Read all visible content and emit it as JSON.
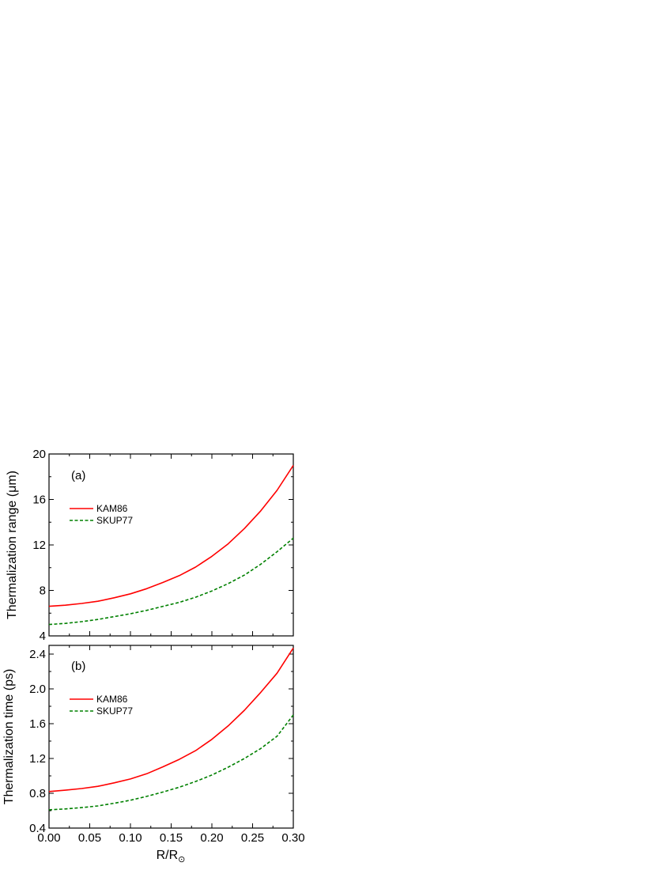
{
  "xlabel": "R/R",
  "xlabel_sub": "⊙",
  "chart_data": [
    {
      "type": "line",
      "panel_label": "(a)",
      "ylabel": "Thermalization range (μm)",
      "xlim": [
        0,
        0.3
      ],
      "ylim": [
        4,
        20
      ],
      "x_ticks": [
        0.0,
        0.05,
        0.1,
        0.15,
        0.2,
        0.25,
        0.3
      ],
      "x_tick_labels": [
        "0.00",
        "0.05",
        "0.10",
        "0.15",
        "0.20",
        "0.25",
        "0.30"
      ],
      "y_ticks": [
        4,
        8,
        12,
        16,
        20
      ],
      "y_tick_labels": [
        "4",
        "8",
        "12",
        "16",
        "20"
      ],
      "legend": "upper-left",
      "series": [
        {
          "name": "KAM86",
          "color": "#ff0000",
          "dash": "solid",
          "x": [
            0.0,
            0.02,
            0.04,
            0.06,
            0.08,
            0.1,
            0.12,
            0.14,
            0.16,
            0.18,
            0.2,
            0.22,
            0.24,
            0.26,
            0.28,
            0.3
          ],
          "y": [
            6.6,
            6.7,
            6.85,
            7.05,
            7.35,
            7.7,
            8.15,
            8.7,
            9.3,
            10.05,
            11.0,
            12.1,
            13.45,
            15.0,
            16.8,
            19.0
          ]
        },
        {
          "name": "SKUP77",
          "color": "#008000",
          "dash": "dashed",
          "x": [
            0.0,
            0.02,
            0.04,
            0.06,
            0.08,
            0.1,
            0.12,
            0.14,
            0.16,
            0.18,
            0.2,
            0.22,
            0.24,
            0.26,
            0.28,
            0.3
          ],
          "y": [
            5.0,
            5.1,
            5.25,
            5.45,
            5.7,
            5.95,
            6.25,
            6.6,
            6.95,
            7.4,
            7.95,
            8.6,
            9.35,
            10.3,
            11.4,
            12.6
          ]
        }
      ]
    },
    {
      "type": "line",
      "panel_label": "(b)",
      "ylabel": "Thermalization time (ps)",
      "xlim": [
        0,
        0.3
      ],
      "ylim": [
        0.4,
        2.5
      ],
      "x_ticks": [
        0.0,
        0.05,
        0.1,
        0.15,
        0.2,
        0.25,
        0.3
      ],
      "x_tick_labels": [
        "0.00",
        "0.05",
        "0.10",
        "0.15",
        "0.20",
        "0.25",
        "0.30"
      ],
      "y_ticks": [
        0.4,
        0.8,
        1.2,
        1.6,
        2.0,
        2.4
      ],
      "y_tick_labels": [
        "0.4",
        "0.8",
        "1.2",
        "1.6",
        "2.0",
        "2.4"
      ],
      "legend": "upper-left",
      "series": [
        {
          "name": "KAM86",
          "color": "#ff0000",
          "dash": "solid",
          "x": [
            0.0,
            0.02,
            0.04,
            0.06,
            0.08,
            0.1,
            0.12,
            0.14,
            0.16,
            0.18,
            0.2,
            0.22,
            0.24,
            0.26,
            0.28,
            0.3
          ],
          "y": [
            0.82,
            0.835,
            0.855,
            0.88,
            0.92,
            0.965,
            1.025,
            1.105,
            1.19,
            1.29,
            1.42,
            1.575,
            1.755,
            1.96,
            2.18,
            2.47
          ]
        },
        {
          "name": "SKUP77",
          "color": "#008000",
          "dash": "dashed",
          "x": [
            0.0,
            0.02,
            0.04,
            0.06,
            0.08,
            0.1,
            0.12,
            0.14,
            0.16,
            0.18,
            0.2,
            0.22,
            0.24,
            0.26,
            0.28,
            0.3
          ],
          "y": [
            0.61,
            0.62,
            0.635,
            0.655,
            0.685,
            0.72,
            0.765,
            0.815,
            0.87,
            0.935,
            1.01,
            1.1,
            1.2,
            1.315,
            1.455,
            1.7
          ]
        }
      ]
    }
  ]
}
